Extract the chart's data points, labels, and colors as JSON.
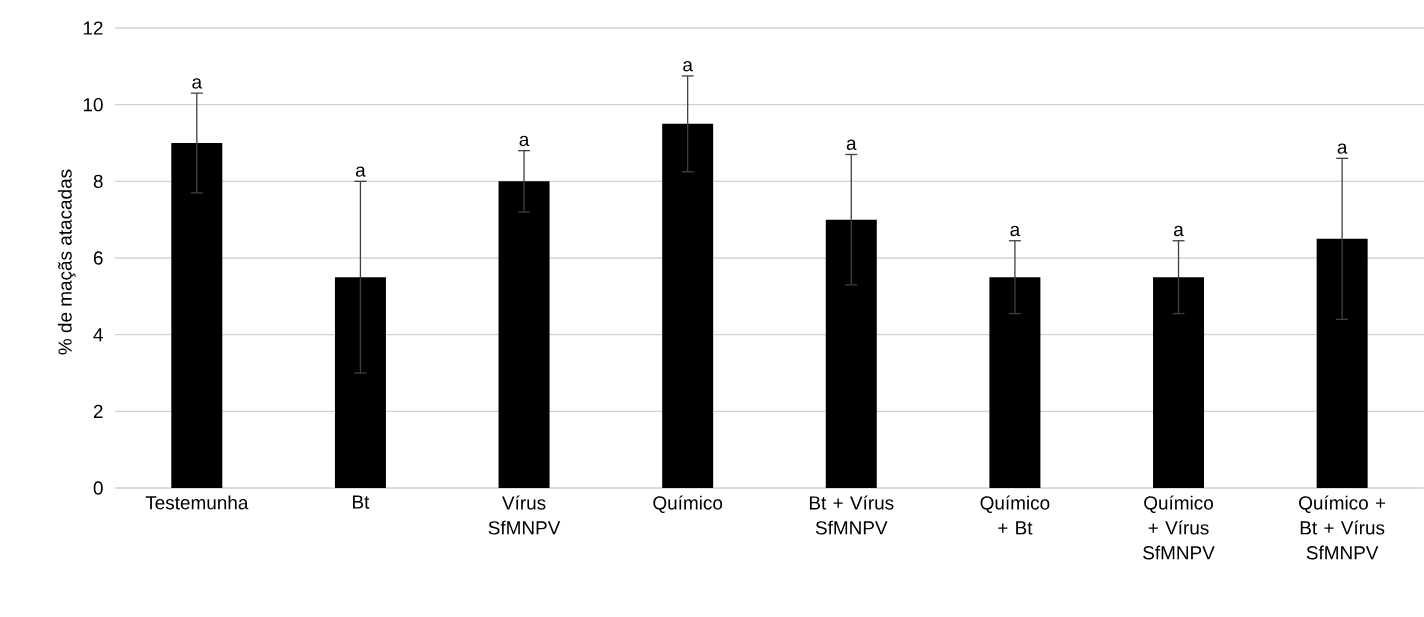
{
  "chart_data": {
    "type": "bar",
    "ylabel": "% de maçãs atacadas",
    "categories": [
      "Testemunha",
      "Bt",
      "Vírus SfMNPV",
      "Químico",
      "Bt + Vírus SfMNPV",
      "Químico + Bt",
      "Químico + Vírus SfMNPV",
      "Químico + Bt + Vírus SfMNPV"
    ],
    "values": [
      9,
      5.5,
      8,
      9.5,
      7,
      5.5,
      5.5,
      6.5
    ],
    "errors": [
      1.3,
      2.5,
      0.8,
      1.25,
      1.7,
      0.95,
      0.95,
      2.1
    ],
    "color": "#000000",
    "ylim": [
      0,
      12
    ],
    "yticks": [
      0,
      2,
      4,
      6,
      8,
      10,
      12
    ],
    "grid": "y",
    "annotations": [
      {
        "text": "a",
        "x": "Testemunha",
        "y": 10.3
      },
      {
        "text": "a",
        "x": "Bt",
        "y": 8
      },
      {
        "text": "a",
        "x": "Vírus SfMNPV",
        "y": 8.8
      },
      {
        "text": "a",
        "x": "Químico",
        "y": 10.75
      },
      {
        "text": "a",
        "x": "Bt + Vírus SfMNPV",
        "y": 8.7
      },
      {
        "text": "a",
        "x": "Químico + Bt",
        "y": 6.45
      },
      {
        "text": "a",
        "x": "Químico + Vírus SfMNPV",
        "y": 6.45
      },
      {
        "text": "a",
        "x": "Químico + Bt + Vírus SfMNPV",
        "y": 8.6
      }
    ]
  }
}
